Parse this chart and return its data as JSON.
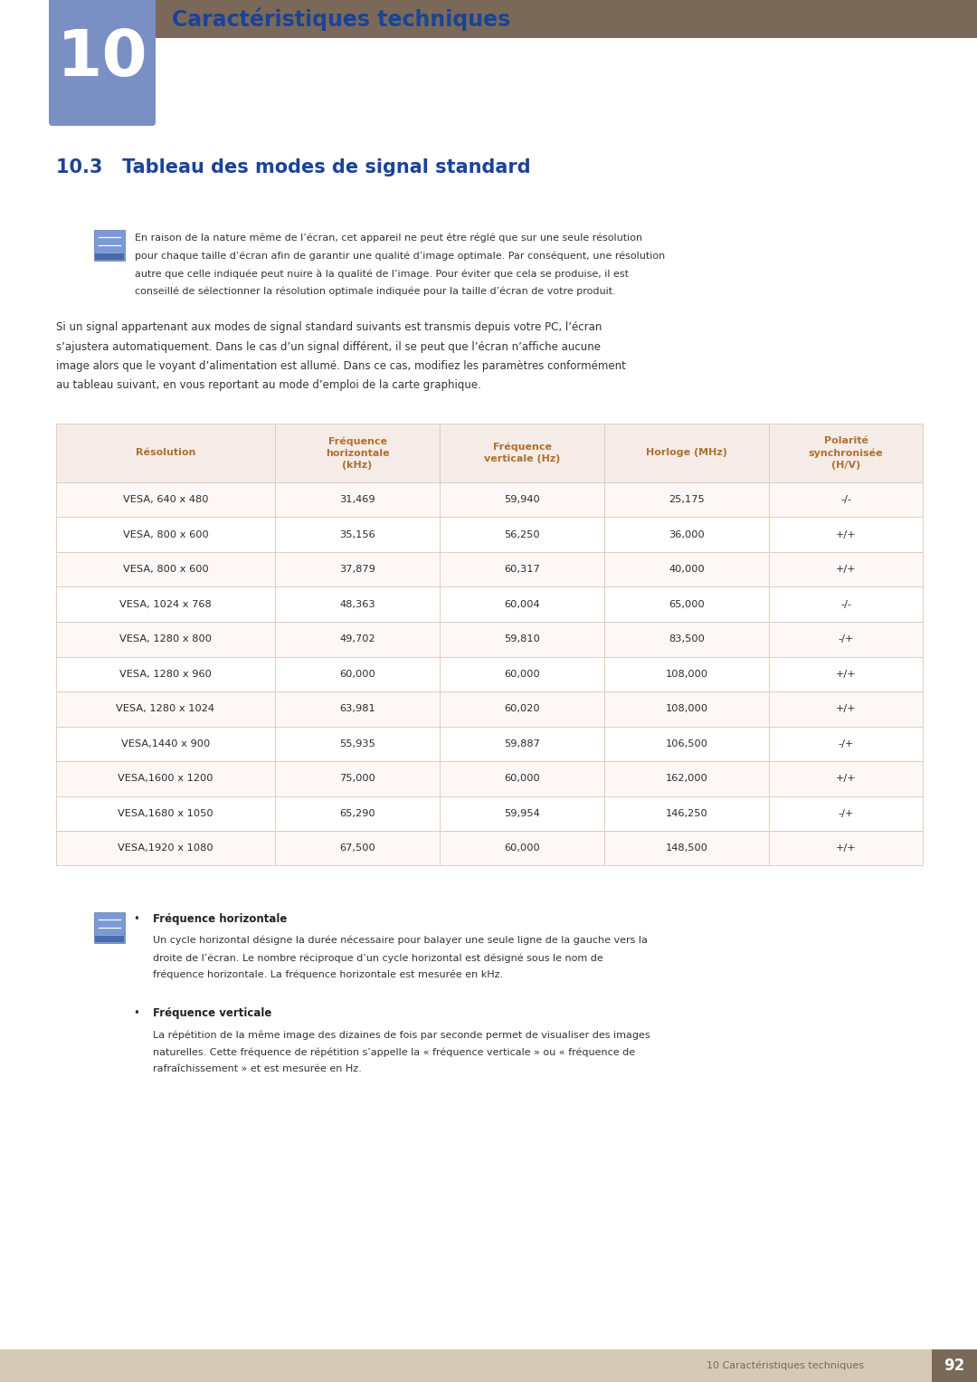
{
  "page_bg": "#ffffff",
  "header_bar_color": "#7a6958",
  "chapter_number": "10",
  "chapter_number_color": "#7a8fc4",
  "chapter_title": "Caractéristiques techniques",
  "chapter_title_color": "#1a4496",
  "section_title": "10.3   Tableau des modes de signal standard",
  "section_title_color": "#1a4496",
  "note_icon_color_top": "#6b86bc",
  "note_icon_color_bottom": "#4a6aaa",
  "note_text_lines": [
    "En raison de la nature même de l’écran, cet appareil ne peut être réglé que sur une seule résolution",
    "pour chaque taille d’écran afin de garantir une qualité d’image optimale. Par conséquent, une résolution",
    "autre que celle indiquée peut nuire à la qualité de l’image. Pour éviter que cela se produise, il est",
    "conseillé de sélectionner la résolution optimale indiquée pour la taille d’écran de votre produit."
  ],
  "body_text_lines": [
    "Si un signal appartenant aux modes de signal standard suivants est transmis depuis votre PC, l’écran",
    "s’ajustera automatiquement. Dans le cas d’un signal différent, il se peut que l’écran n’affiche aucune",
    "image alors que le voyant d’alimentation est allumé. Dans ce cas, modifiez les paramètres conformément",
    "au tableau suivant, en vous reportant au mode d’emploi de la carte graphique."
  ],
  "table_header_bg": "#f5ece8",
  "table_header_text_color": "#b07030",
  "table_row_bg_odd": "#fdf8f6",
  "table_row_bg_even": "#ffffff",
  "table_border_color": "#e0c8b8",
  "table_headers": [
    "Résolution",
    "Fréquence\nhorizontale\n(kHz)",
    "Fréquence\nverticale (Hz)",
    "Horloge (MHz)",
    "Polarité\nsynchronisée\n(H/V)"
  ],
  "table_rows": [
    [
      "VESA, 640 x 480",
      "31,469",
      "59,940",
      "25,175",
      "-/-"
    ],
    [
      "VESA, 800 x 600",
      "35,156",
      "56,250",
      "36,000",
      "+/+"
    ],
    [
      "VESA, 800 x 600",
      "37,879",
      "60,317",
      "40,000",
      "+/+"
    ],
    [
      "VESA, 1024 x 768",
      "48,363",
      "60,004",
      "65,000",
      "-/-"
    ],
    [
      "VESA, 1280 x 800",
      "49,702",
      "59,810",
      "83,500",
      "-/+"
    ],
    [
      "VESA, 1280 x 960",
      "60,000",
      "60,000",
      "108,000",
      "+/+"
    ],
    [
      "VESA, 1280 x 1024",
      "63,981",
      "60,020",
      "108,000",
      "+/+"
    ],
    [
      "VESA,1440 x 900",
      "55,935",
      "59,887",
      "106,500",
      "-/+"
    ],
    [
      "VESA,1600 x 1200",
      "75,000",
      "60,000",
      "162,000",
      "+/+"
    ],
    [
      "VESA,1680 x 1050",
      "65,290",
      "59,954",
      "146,250",
      "-/+"
    ],
    [
      "VESA,1920 x 1080",
      "67,500",
      "60,000",
      "148,500",
      "+/+"
    ]
  ],
  "bullet_icon_color": "#6b86bc",
  "bullet_items": [
    {
      "title": "Fréquence horizontale",
      "text_lines": [
        "Un cycle horizontal désigne la durée nécessaire pour balayer une seule ligne de la gauche vers la",
        "droite de l’écran. Le nombre réciproque d’un cycle horizontal est désigné sous le nom de",
        "fréquence horizontale. La fréquence horizontale est mesurée en kHz."
      ]
    },
    {
      "title": "Fréquence verticale",
      "text_lines": [
        "La répétition de la même image des dizaines de fois par seconde permet de visualiser des images",
        "naturelles. Cette fréquence de répétition s’appelle la « fréquence verticale » ou « fréquence de",
        "rafraîchissement » et est mesurée en Hz."
      ]
    }
  ],
  "footer_bg": "#d5c9b8",
  "footer_text": "10 Caractéristiques techniques",
  "footer_text_color": "#7a6958",
  "footer_page_bg": "#7a6958",
  "footer_page_text": "92",
  "footer_page_text_color": "#ffffff"
}
